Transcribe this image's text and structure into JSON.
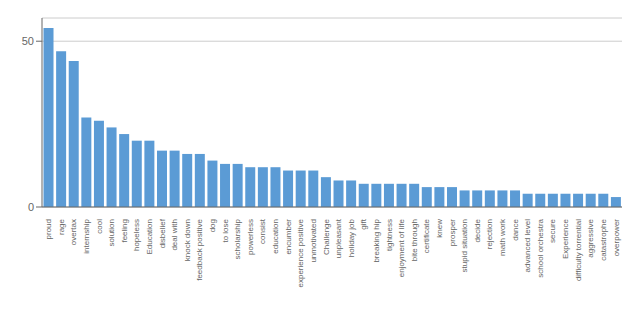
{
  "chart_data": {
    "type": "bar",
    "categories": [
      "proud",
      "rage",
      "overtax",
      "internship",
      "cool",
      "solution",
      "feeling",
      "hopeless",
      "Education",
      "disbelief",
      "deal with",
      "knock down",
      "feedback positive",
      "dog",
      "to lose",
      "scholarship",
      "powerless",
      "consist",
      "education",
      "encumber",
      "experience positive",
      "unmotivated",
      "Challenge",
      "unpleasant",
      "holiday job",
      "gift",
      "breaking hip",
      "tightness",
      "enjoyment of life",
      "bite through",
      "certificate",
      "knew",
      "prosper",
      "stupid situation",
      "decide",
      "rejection",
      "math work",
      "dance",
      "advanced level",
      "school orchestra",
      "secure",
      "Experience",
      "difficulty torrential",
      "aggressive",
      "catastrophe",
      "overpower"
    ],
    "values": [
      54,
      47,
      44,
      27,
      26,
      24,
      22,
      20,
      20,
      17,
      17,
      16,
      16,
      14,
      13,
      13,
      12,
      12,
      12,
      11,
      11,
      11,
      9,
      8,
      8,
      7,
      7,
      7,
      7,
      7,
      6,
      6,
      6,
      5,
      5,
      5,
      5,
      5,
      4,
      4,
      4,
      4,
      4,
      4,
      4,
      3
    ],
    "color": "#5B9BD5",
    "ylim": [
      0,
      57
    ],
    "yticks": [
      0,
      50
    ],
    "grid": true
  }
}
